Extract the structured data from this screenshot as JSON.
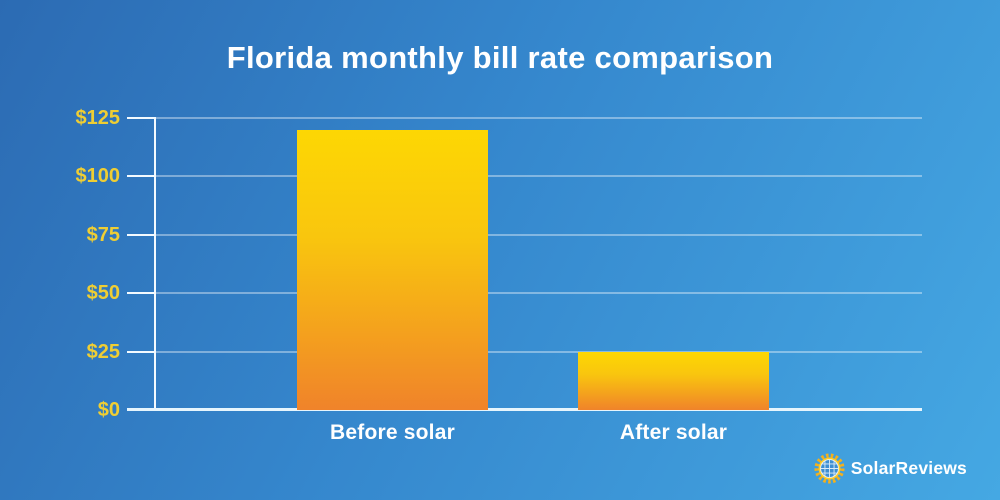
{
  "title": "Florida monthly bill rate comparison",
  "chart_data": {
    "type": "bar",
    "title": "Florida monthly bill rate comparison",
    "categories": [
      "Before solar",
      "After solar"
    ],
    "values": [
      120,
      25
    ],
    "xlabel": "",
    "ylabel": "",
    "ylim": [
      0,
      125
    ],
    "y_ticks": [
      {
        "value": 0,
        "label": "$0"
      },
      {
        "value": 25,
        "label": "$25"
      },
      {
        "value": 50,
        "label": "$50"
      },
      {
        "value": 75,
        "label": "$75"
      },
      {
        "value": 100,
        "label": "$100"
      },
      {
        "value": 125,
        "label": "$125"
      }
    ],
    "grid": true,
    "legend": "none"
  },
  "colors": {
    "background_top_left": "#2c6bb3",
    "background_mid": "#3587cd",
    "background_bottom_right": "#45a8e3",
    "tick_label": "#efce33",
    "axis": "#f3faff",
    "gridline": "rgba(255,255,255,0.38)",
    "bar_gradient_top": "#fdd703",
    "bar_gradient_bottom": "#f0832a",
    "title_text": "#ffffff"
  },
  "footer": {
    "brand": "SolarReviews",
    "logo_icon": "sun-solar-panel-icon"
  }
}
